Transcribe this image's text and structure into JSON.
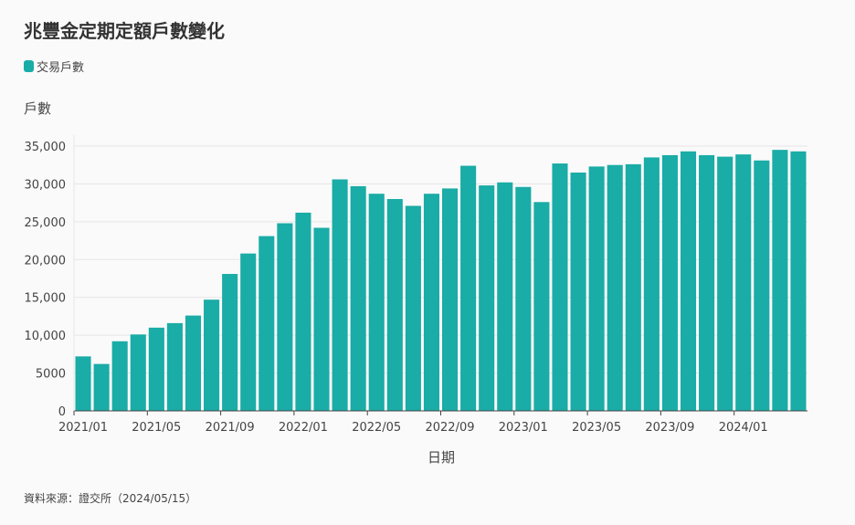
{
  "header": {
    "title": "兆豐金定期定額戶數變化",
    "source": "資料來源：證交所（2024/05/15）"
  },
  "colors": {
    "bar": "#1aaca6",
    "grid": "#e6e6e6",
    "axis": "#444444"
  },
  "chart_data": {
    "type": "bar",
    "title": "兆豐金定期定額戶數變化",
    "xlabel": "日期",
    "ylabel": "戶數",
    "legend": [
      "交易戶數"
    ],
    "legend_position": "top-left",
    "grid": true,
    "ylim": [
      0,
      35000
    ],
    "yticks": [
      "0",
      "5000",
      "10,000",
      "15,000",
      "20,000",
      "25,000",
      "30,000",
      "35,000"
    ],
    "ytick_values": [
      0,
      5000,
      10000,
      15000,
      20000,
      25000,
      30000,
      35000
    ],
    "xticks": [
      "2021/01",
      "2021/05",
      "2021/09",
      "2022/01",
      "2022/05",
      "2022/09",
      "2023/01",
      "2023/05",
      "2023/09",
      "2024/01"
    ],
    "categories": [
      "2021/01",
      "2021/02",
      "2021/03",
      "2021/04",
      "2021/05",
      "2021/06",
      "2021/07",
      "2021/08",
      "2021/09",
      "2021/10",
      "2021/11",
      "2021/12",
      "2022/01",
      "2022/02",
      "2022/03",
      "2022/04",
      "2022/05",
      "2022/06",
      "2022/07",
      "2022/08",
      "2022/09",
      "2022/10",
      "2022/11",
      "2022/12",
      "2023/01",
      "2023/02",
      "2023/03",
      "2023/04",
      "2023/05",
      "2023/06",
      "2023/07",
      "2023/08",
      "2023/09",
      "2023/10",
      "2023/11",
      "2023/12",
      "2024/01",
      "2024/02",
      "2024/03",
      "2024/04"
    ],
    "series": [
      {
        "name": "交易戶數",
        "values": [
          7200,
          6200,
          9200,
          10100,
          11000,
          11600,
          12600,
          14700,
          18100,
          20800,
          23100,
          24800,
          26200,
          24200,
          30600,
          29700,
          28700,
          28000,
          27100,
          28700,
          29400,
          32400,
          29800,
          30200,
          29600,
          27600,
          32700,
          31500,
          32300,
          32500,
          32600,
          33500,
          33800,
          34300,
          33800,
          33600,
          33900,
          33100,
          34500,
          34300
        ]
      }
    ]
  }
}
